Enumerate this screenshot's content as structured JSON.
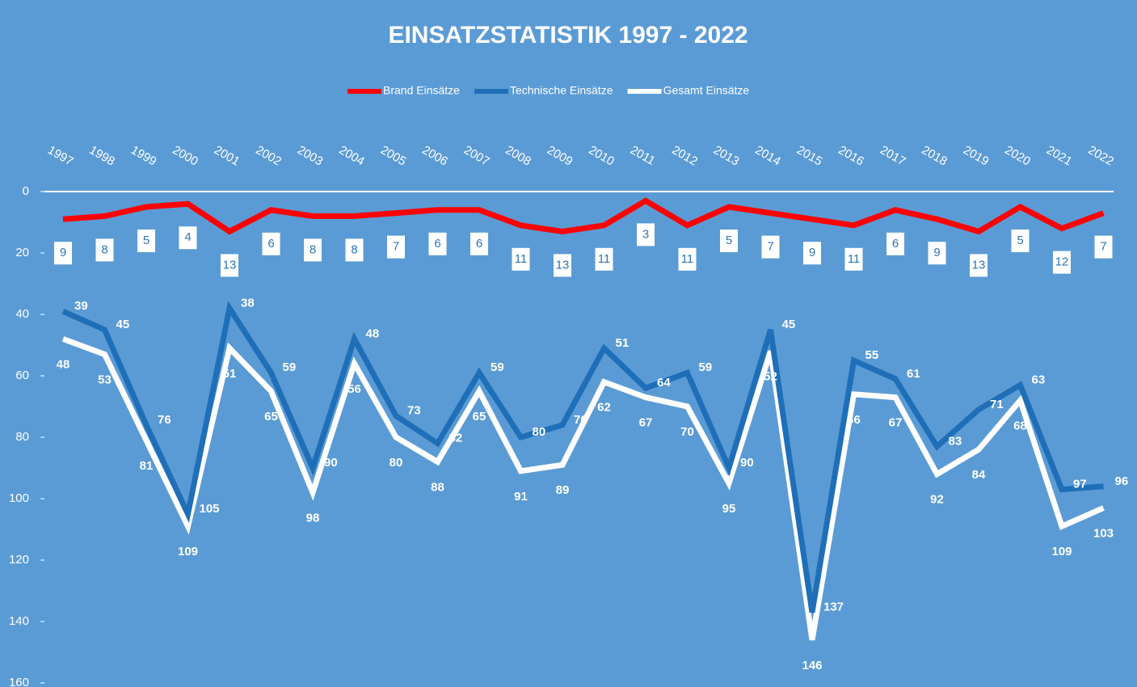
{
  "chart_data": {
    "type": "line",
    "title": "EINSATZSTATISTIK 1997 - 2022",
    "categories": [
      "1997",
      "1998",
      "1999",
      "2000",
      "2001",
      "2002",
      "2003",
      "2004",
      "2005",
      "2006",
      "2007",
      "2008",
      "2009",
      "2010",
      "2011",
      "2012",
      "2013",
      "2014",
      "2015",
      "2016",
      "2017",
      "2018",
      "2019",
      "2020",
      "2021",
      "2022"
    ],
    "series": [
      {
        "name": "Brand Einsätze",
        "color": "#ff0000",
        "values": [
          9,
          8,
          5,
          4,
          13,
          6,
          8,
          8,
          7,
          6,
          6,
          11,
          13,
          11,
          3,
          11,
          5,
          7,
          9,
          11,
          6,
          9,
          13,
          5,
          12,
          7
        ]
      },
      {
        "name": "Technische Einsätze",
        "color": "#1f6fb8",
        "values": [
          39,
          45,
          76,
          105,
          38,
          59,
          90,
          48,
          73,
          82,
          59,
          80,
          76,
          51,
          64,
          59,
          90,
          45,
          137,
          55,
          61,
          83,
          71,
          63,
          97,
          96
        ]
      },
      {
        "name": "Gesamt Einsätze",
        "color": "#ffffff",
        "values": [
          48,
          53,
          81,
          109,
          51,
          65,
          98,
          56,
          80,
          88,
          65,
          91,
          89,
          62,
          67,
          70,
          95,
          52,
          146,
          66,
          67,
          92,
          84,
          68,
          109,
          103
        ]
      }
    ],
    "ylim": [
      0,
      160
    ],
    "yticks": [
      0,
      20,
      40,
      60,
      80,
      100,
      120,
      140,
      160
    ],
    "y_inverted": true,
    "grid": false,
    "legend": "top"
  }
}
